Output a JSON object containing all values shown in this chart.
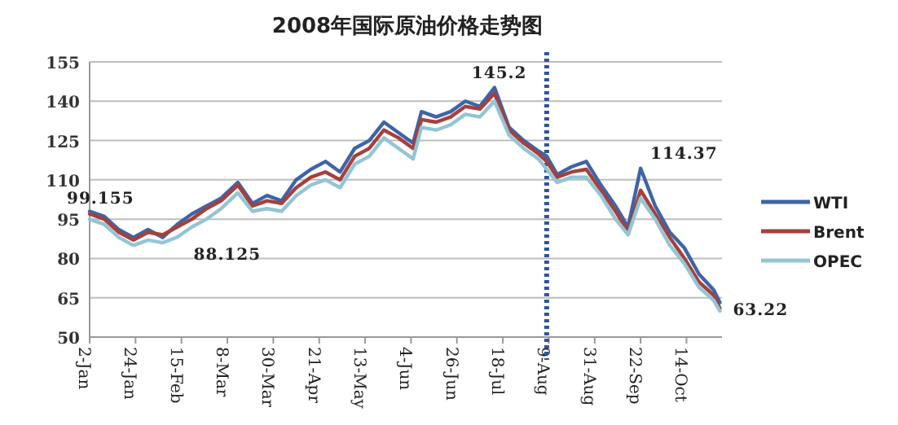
{
  "chart_data": {
    "type": "line",
    "title": "2008年国际原油价格走势图",
    "x": [
      "2008-01-02",
      "2008-01-09",
      "2008-01-16",
      "2008-01-23",
      "2008-01-30",
      "2008-02-06",
      "2008-02-13",
      "2008-02-20",
      "2008-02-27",
      "2008-03-05",
      "2008-03-13",
      "2008-03-20",
      "2008-03-27",
      "2008-04-03",
      "2008-04-10",
      "2008-04-17",
      "2008-04-24",
      "2008-05-01",
      "2008-05-08",
      "2008-05-15",
      "2008-05-22",
      "2008-05-29",
      "2008-06-05",
      "2008-06-09",
      "2008-06-16",
      "2008-06-23",
      "2008-06-30",
      "2008-07-07",
      "2008-07-14",
      "2008-07-21",
      "2008-07-28",
      "2008-08-04",
      "2008-08-08",
      "2008-08-13",
      "2008-08-20",
      "2008-08-27",
      "2008-09-03",
      "2008-09-10",
      "2008-09-16",
      "2008-09-22",
      "2008-09-29",
      "2008-10-06",
      "2008-10-13",
      "2008-10-20",
      "2008-10-27",
      "2008-10-30"
    ],
    "series": [
      {
        "name": "WTI",
        "color": "#3e64a8",
        "values": [
          98,
          96,
          91,
          88,
          91,
          88,
          93,
          97,
          100,
          103,
          109,
          101,
          104,
          102,
          110,
          114,
          117,
          113,
          122,
          125,
          132,
          128,
          124,
          136,
          134,
          136,
          140,
          138,
          145.2,
          130,
          125,
          121,
          119,
          112,
          115,
          117,
          108,
          100,
          92,
          114.37,
          100,
          90,
          84,
          74,
          68,
          63.22
        ]
      },
      {
        "name": "Brent",
        "color": "#a5403c",
        "values": [
          97,
          95,
          90,
          87,
          90,
          89,
          92,
          95,
          99,
          102,
          108,
          100,
          102,
          101,
          107,
          111,
          113,
          110,
          119,
          122,
          129,
          126,
          122,
          133,
          132,
          134,
          138,
          137,
          143,
          129,
          124,
          120,
          117,
          111,
          113,
          114,
          106,
          98,
          90,
          106,
          97,
          88,
          80,
          71,
          66,
          61
        ]
      },
      {
        "name": "OPEC",
        "color": "#93c5d6",
        "values": [
          95,
          93,
          88,
          85,
          87,
          86,
          88.125,
          92,
          95,
          99,
          105,
          98,
          99,
          98,
          104,
          108,
          110,
          107,
          116,
          119,
          126,
          122,
          118,
          130,
          129,
          131,
          135,
          134,
          140,
          127,
          122,
          118,
          114,
          109,
          111,
          111,
          104,
          95,
          89,
          103,
          95,
          85,
          78,
          69,
          64,
          60
        ]
      }
    ],
    "xlim": [
      "2008-01-02",
      "2008-10-31"
    ],
    "xticks": [
      {
        "value": "2008-01-02",
        "label": "2-Jan"
      },
      {
        "value": "2008-01-24",
        "label": "24-Jan"
      },
      {
        "value": "2008-02-15",
        "label": "15-Feb"
      },
      {
        "value": "2008-03-08",
        "label": "8-Mar"
      },
      {
        "value": "2008-03-30",
        "label": "30-Mar"
      },
      {
        "value": "2008-04-21",
        "label": "21-Apr"
      },
      {
        "value": "2008-05-13",
        "label": "13-May"
      },
      {
        "value": "2008-06-04",
        "label": "4-Jun"
      },
      {
        "value": "2008-06-26",
        "label": "26-Jun"
      },
      {
        "value": "2008-07-18",
        "label": "18-Jul"
      },
      {
        "value": "2008-08-09",
        "label": "9-Aug"
      },
      {
        "value": "2008-08-31",
        "label": "31-Aug"
      },
      {
        "value": "2008-09-22",
        "label": "22-Sep"
      },
      {
        "value": "2008-10-14",
        "label": "14-Oct"
      }
    ],
    "ylim": [
      50,
      155
    ],
    "yticks": [
      50,
      65,
      80,
      95,
      110,
      125,
      140,
      155
    ],
    "grid": "y",
    "legend": "right",
    "marker": "none",
    "line_style": "solid",
    "ref_lines": [
      {
        "axis": "x",
        "value": "2008-08-08",
        "color": "#2f5597",
        "line_style": "dotted"
      }
    ],
    "annotations": [
      {
        "text": "99.155",
        "x": "2008-01-02",
        "y": 99.155
      },
      {
        "text": "88.125",
        "x": "2008-02-13",
        "y": 88.125
      },
      {
        "text": "145.2",
        "x": "2008-07-14",
        "y": 145.2
      },
      {
        "text": "114.37",
        "x": "2008-09-22",
        "y": 114.37
      },
      {
        "text": "63.22",
        "x": "2008-10-30",
        "y": 63.22
      }
    ]
  }
}
